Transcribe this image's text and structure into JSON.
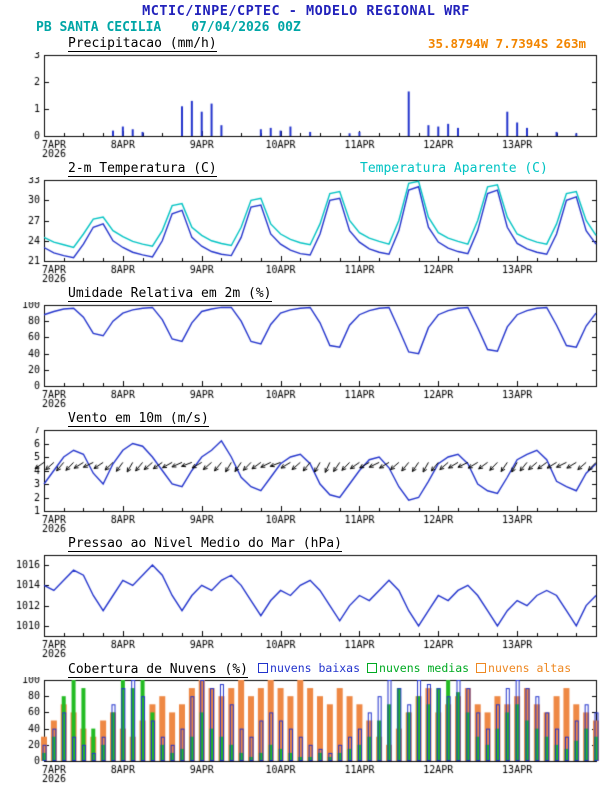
{
  "header": {
    "line1": "MCTIC/INPE/CPTEC - MODELO REGIONAL WRF",
    "station": "PB SANTA CECILIA",
    "datetime": "07/04/2026 00Z",
    "coords": "35.8794W 7.7394S 263m"
  },
  "colors": {
    "title": "#2222bb",
    "station": "#00a6a6",
    "coords": "#f28500",
    "line_blue": "#2233cc",
    "apparent_cyan": "#00c3c3"
  },
  "x_axis": {
    "range": [
      0,
      168
    ],
    "ticks": [
      0,
      24,
      48,
      72,
      96,
      120,
      144
    ],
    "labels": [
      "7APR",
      "8APR",
      "9APR",
      "10APR",
      "11APR",
      "12APR",
      "13APR"
    ],
    "sub_label": "2026"
  },
  "chart_data": [
    {
      "id": "precip",
      "type": "bar",
      "title": "Precipitacao (mm/h)",
      "color": "#2233cc",
      "ylim": [
        0,
        3
      ],
      "yticks": [
        0,
        1,
        2,
        3
      ],
      "x_step": 3,
      "values": [
        0,
        0,
        0,
        0,
        0,
        0,
        0,
        0.2,
        0.35,
        0.25,
        0.15,
        0,
        0,
        0,
        1.1,
        1.3,
        0.9,
        1.2,
        0.4,
        0,
        0,
        0,
        0.25,
        0.3,
        0.2,
        0.35,
        0,
        0.15,
        0,
        0,
        0,
        0.1,
        0.15,
        0,
        0,
        0,
        0,
        1.65,
        0,
        0.4,
        0.35,
        0.45,
        0.3,
        0,
        0,
        0,
        0,
        0.9,
        0.5,
        0.3,
        0,
        0,
        0.15,
        0,
        0.1,
        0,
        0
      ]
    },
    {
      "id": "temp",
      "type": "line",
      "title": "2-m Temperatura (C)",
      "extra_label": "Temperatura Aparente (C)",
      "ylim": [
        21,
        33
      ],
      "yticks": [
        21,
        24,
        27,
        30,
        33
      ],
      "x_step": 3,
      "series": [
        {
          "name": "2-m Temperatura (C)",
          "color": "#2233cc",
          "values": [
            23.0,
            22.2,
            21.8,
            21.5,
            23.5,
            26.0,
            26.5,
            24.0,
            23.0,
            22.3,
            21.9,
            21.6,
            24.0,
            28.0,
            28.5,
            24.5,
            23.2,
            22.4,
            22.0,
            21.8,
            24.5,
            29.0,
            29.3,
            25.0,
            23.5,
            22.6,
            22.1,
            21.9,
            25.0,
            30.0,
            30.3,
            25.5,
            23.8,
            22.8,
            22.3,
            22.0,
            25.5,
            31.5,
            32.0,
            26.0,
            23.8,
            22.9,
            22.4,
            22.1,
            25.5,
            31.0,
            31.5,
            26.0,
            23.6,
            22.8,
            22.3,
            22.0,
            25.0,
            30.0,
            30.5,
            25.5,
            23.5
          ]
        },
        {
          "name": "Temperatura Aparente (C)",
          "color": "#00c3c3",
          "values": [
            24.5,
            23.8,
            23.4,
            23.0,
            25.0,
            27.2,
            27.5,
            25.5,
            24.6,
            23.9,
            23.5,
            23.2,
            25.5,
            29.2,
            29.5,
            26.0,
            24.8,
            24.0,
            23.6,
            23.3,
            26.0,
            30.0,
            30.3,
            26.5,
            25.0,
            24.2,
            23.7,
            23.4,
            26.5,
            31.0,
            31.3,
            27.0,
            25.2,
            24.4,
            23.9,
            23.5,
            27.0,
            32.5,
            32.8,
            27.5,
            25.2,
            24.4,
            23.9,
            23.5,
            27.0,
            32.0,
            32.3,
            27.5,
            25.0,
            24.3,
            23.8,
            23.5,
            26.5,
            31.0,
            31.3,
            27.0,
            24.8
          ]
        }
      ]
    },
    {
      "id": "rh",
      "type": "line",
      "title": "Umidade Relativa em 2m (%)",
      "ylim": [
        0,
        100
      ],
      "yticks": [
        0,
        20,
        40,
        60,
        80,
        100
      ],
      "x_step": 3,
      "series": [
        {
          "name": "Umidade Relativa em 2m",
          "color": "#2233cc",
          "values": [
            88,
            92,
            95,
            96,
            85,
            65,
            62,
            80,
            90,
            94,
            96,
            97,
            82,
            58,
            55,
            78,
            92,
            95,
            97,
            97,
            80,
            55,
            52,
            76,
            90,
            94,
            96,
            97,
            78,
            50,
            48,
            75,
            88,
            93,
            96,
            97,
            70,
            42,
            40,
            72,
            88,
            93,
            96,
            97,
            72,
            45,
            43,
            73,
            88,
            93,
            96,
            97,
            75,
            50,
            48,
            74,
            90
          ]
        }
      ]
    },
    {
      "id": "wind",
      "type": "wind",
      "title": "Vento em 10m (m/s)",
      "ylim": [
        1,
        7
      ],
      "yticks": [
        1,
        2,
        3,
        4,
        5,
        6,
        7
      ],
      "x_step": 3,
      "series": [
        {
          "name": "Vento em 10m",
          "color": "#2233cc",
          "values": [
            3.0,
            4.0,
            5.0,
            5.5,
            5.2,
            3.8,
            3.0,
            4.5,
            5.5,
            6.0,
            5.8,
            5.0,
            4.0,
            3.0,
            2.8,
            4.0,
            5.0,
            5.5,
            6.2,
            5.0,
            3.5,
            2.8,
            2.5,
            3.5,
            4.5,
            5.0,
            5.2,
            4.5,
            3.0,
            2.2,
            2.0,
            3.0,
            4.0,
            4.8,
            5.0,
            4.2,
            2.8,
            1.8,
            2.0,
            3.2,
            4.5,
            5.0,
            5.2,
            4.5,
            3.0,
            2.5,
            2.3,
            3.5,
            4.8,
            5.2,
            5.5,
            4.8,
            3.2,
            2.8,
            2.5,
            3.8,
            4.5
          ]
        }
      ],
      "barbs": {
        "y": 4.6,
        "angles_deg": [
          215,
          222,
          230,
          226,
          212,
          206,
          214,
          224,
          234,
          240,
          231,
          221,
          215,
          209,
          204,
          201,
          210,
          221,
          231,
          239,
          236,
          226,
          216,
          206,
          201,
          211,
          221,
          231,
          241,
          245,
          236,
          226,
          215,
          210,
          206,
          211,
          221,
          231,
          236,
          241,
          231,
          221,
          211,
          206,
          211,
          216,
          226,
          236,
          241,
          231,
          221,
          216,
          211,
          206,
          211,
          221,
          226
        ]
      }
    },
    {
      "id": "pres",
      "type": "line",
      "title": "Pressao ao Nivel Medio do Mar (hPa)",
      "ylim": [
        1009,
        1017
      ],
      "yticks": [
        1010,
        1012,
        1014,
        1016
      ],
      "x_step": 3,
      "series": [
        {
          "name": "Pressao ao Nivel Medio do Mar",
          "color": "#2233cc",
          "values": [
            1014.0,
            1013.5,
            1014.5,
            1015.5,
            1015.0,
            1013.0,
            1011.5,
            1013.0,
            1014.5,
            1014.0,
            1015.0,
            1016.0,
            1015.0,
            1013.0,
            1011.5,
            1013.0,
            1014.0,
            1013.5,
            1014.5,
            1015.0,
            1014.0,
            1012.5,
            1011.0,
            1012.5,
            1013.5,
            1013.0,
            1014.0,
            1014.5,
            1013.5,
            1012.0,
            1010.5,
            1012.0,
            1013.0,
            1012.5,
            1013.5,
            1014.5,
            1013.5,
            1011.5,
            1010.0,
            1011.5,
            1013.0,
            1012.5,
            1013.5,
            1014.0,
            1013.0,
            1011.5,
            1010.0,
            1011.5,
            1012.5,
            1012.0,
            1013.0,
            1013.5,
            1013.0,
            1011.5,
            1010.0,
            1012.0,
            1013.0
          ]
        }
      ]
    },
    {
      "id": "cloud",
      "type": "cloud",
      "title": "Cobertura de Nuvens (%)",
      "ylim": [
        0,
        100
      ],
      "yticks": [
        0,
        20,
        40,
        60,
        80,
        100
      ],
      "x_step": 3,
      "legend": [
        {
          "label": "nuvens baixas",
          "color": "#2233cc"
        },
        {
          "label": "nuvens medias",
          "color": "#00aa22"
        },
        {
          "label": "nuvens altas",
          "color": "#ee8822"
        }
      ],
      "series": [
        {
          "name": "nuvens altas",
          "color": "#ee8844",
          "style": "fill",
          "width": 6,
          "values": [
            30,
            50,
            70,
            60,
            40,
            30,
            50,
            60,
            40,
            30,
            50,
            70,
            80,
            60,
            70,
            90,
            100,
            90,
            80,
            90,
            100,
            80,
            90,
            100,
            90,
            80,
            100,
            90,
            80,
            70,
            90,
            80,
            70,
            50,
            30,
            20,
            40,
            60,
            80,
            90,
            60,
            70,
            80,
            90,
            70,
            60,
            80,
            70,
            80,
            90,
            70,
            60,
            80,
            90,
            70,
            60,
            50
          ]
        },
        {
          "name": "nuvens medias",
          "color": "#22bb22",
          "style": "fill",
          "width": 4,
          "values": [
            10,
            30,
            80,
            100,
            90,
            40,
            20,
            60,
            100,
            90,
            100,
            60,
            20,
            10,
            15,
            30,
            60,
            40,
            30,
            20,
            10,
            5,
            10,
            20,
            15,
            10,
            5,
            5,
            10,
            5,
            10,
            15,
            20,
            30,
            50,
            70,
            90,
            60,
            80,
            70,
            90,
            100,
            85,
            60,
            30,
            20,
            40,
            60,
            70,
            50,
            40,
            30,
            20,
            15,
            25,
            40,
            30
          ]
        },
        {
          "name": "nuvens baixas",
          "color": "#2233cc",
          "style": "outline",
          "width": 3,
          "values": [
            20,
            40,
            60,
            30,
            20,
            10,
            30,
            70,
            90,
            100,
            80,
            50,
            30,
            20,
            40,
            80,
            100,
            90,
            95,
            70,
            40,
            30,
            50,
            60,
            50,
            40,
            30,
            20,
            15,
            10,
            20,
            30,
            40,
            60,
            80,
            100,
            90,
            70,
            100,
            95,
            90,
            80,
            100,
            90,
            60,
            40,
            70,
            90,
            100,
            90,
            80,
            60,
            40,
            30,
            50,
            70,
            60
          ]
        }
      ]
    }
  ]
}
